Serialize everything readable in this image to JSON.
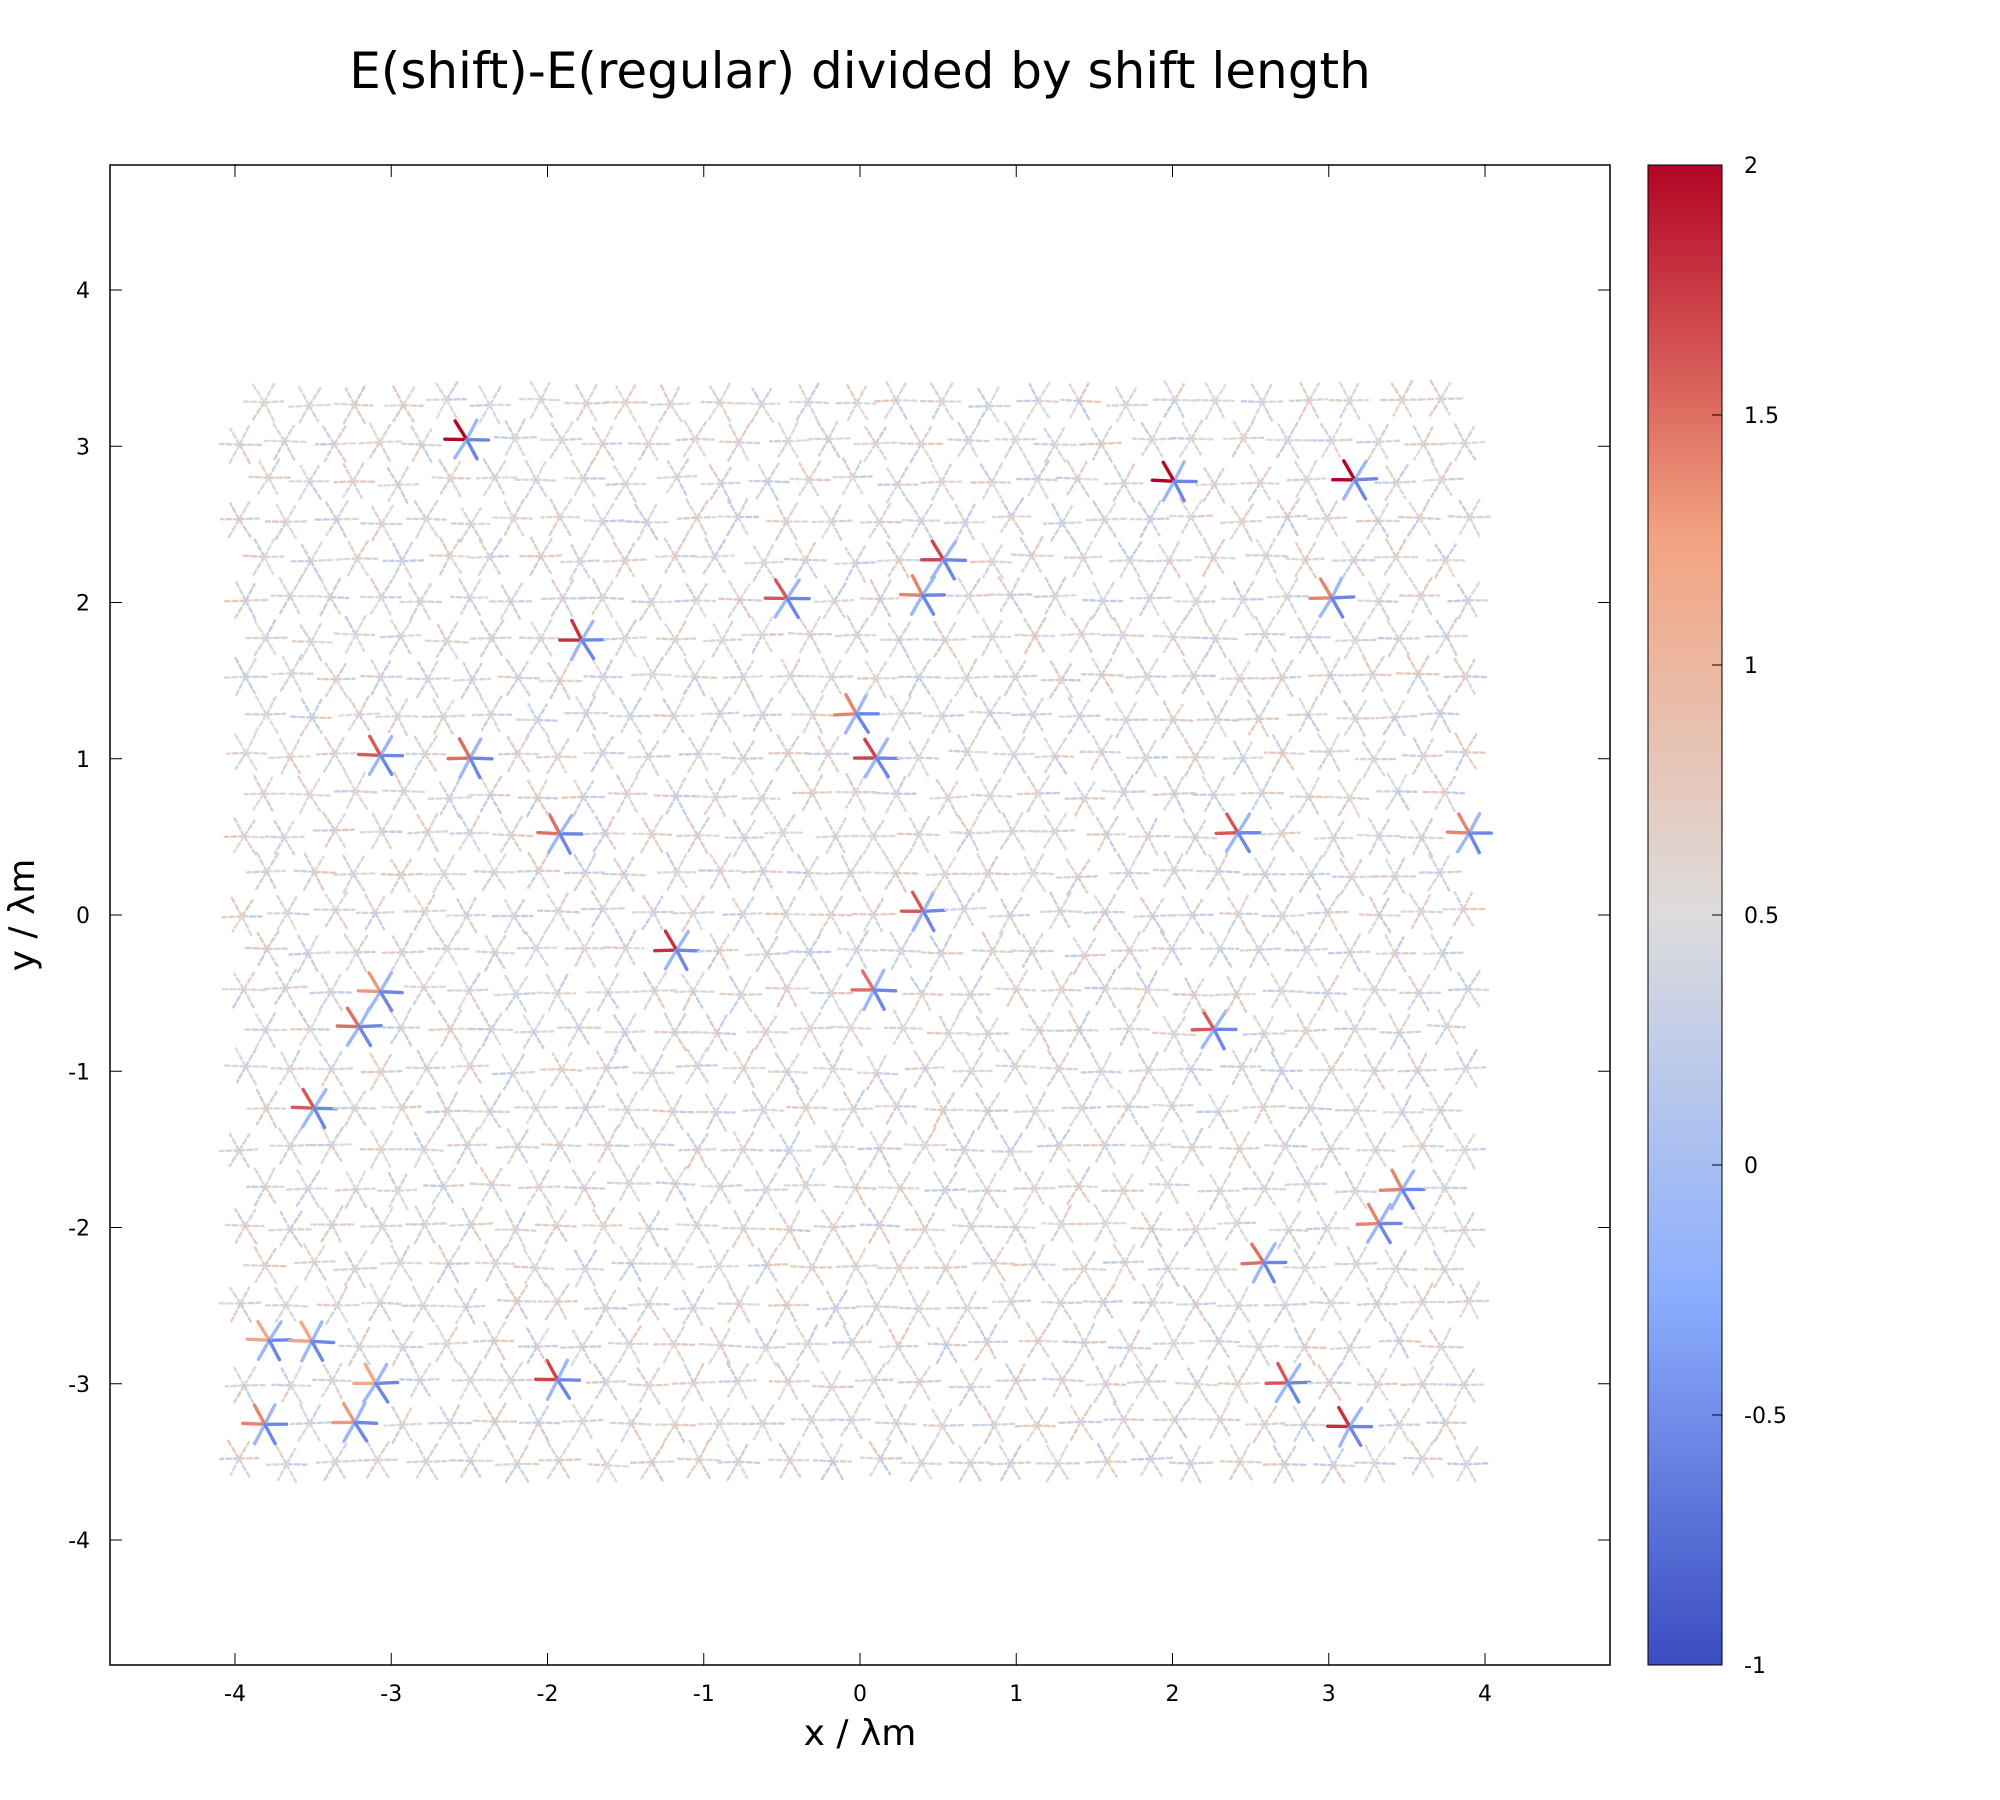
{
  "chart_data": {
    "type": "vector-field",
    "title": "E(shift)-E(regular) divided by shift length",
    "xlabel": "x / λm",
    "ylabel": "y / λm",
    "xlim": [
      -4.8,
      4.8
    ],
    "ylim": [
      -4.8,
      4.8
    ],
    "x_ticks": [
      "-4",
      "-3",
      "-2",
      "-1",
      "0",
      "1",
      "2",
      "3",
      "4"
    ],
    "y_ticks": [
      "-4",
      "-3",
      "-2",
      "-1",
      "0",
      "1",
      "2",
      "3",
      "4"
    ],
    "colorbar": {
      "range": [
        -1,
        2
      ],
      "ticks": [
        "-1",
        "-0.5",
        "0",
        "0.5",
        "1",
        "1.5",
        "2"
      ],
      "colors": [
        "#3b4cc0",
        "#8caffe",
        "#dddcdc",
        "#f3a481",
        "#b40426"
      ]
    },
    "lattice": {
      "spacing": 0.29,
      "x_range": [
        -3.95,
        3.95
      ],
      "y_range": [
        -3.5,
        3.45
      ],
      "baseline_value": 0.5
    },
    "defects": [
      {
        "x": -2.55,
        "y": 3.05,
        "value": 2.0
      },
      {
        "x": 2.05,
        "y": 2.85,
        "value": 2.0
      },
      {
        "x": 3.2,
        "y": 2.85,
        "value": 2.0
      },
      {
        "x": 0.45,
        "y": 2.35,
        "value": 1.7
      },
      {
        "x": -0.45,
        "y": 2.15,
        "value": 1.6
      },
      {
        "x": 0.5,
        "y": 2.0,
        "value": 1.4
      },
      {
        "x": 2.9,
        "y": 2.0,
        "value": 1.4
      },
      {
        "x": -1.65,
        "y": 1.85,
        "value": 1.8
      },
      {
        "x": -0.15,
        "y": 1.3,
        "value": 1.4
      },
      {
        "x": 0.15,
        "y": 1.15,
        "value": 1.7
      },
      {
        "x": -3.15,
        "y": 0.95,
        "value": 1.6
      },
      {
        "x": -2.6,
        "y": 0.95,
        "value": 1.5
      },
      {
        "x": -2.0,
        "y": 0.6,
        "value": 1.5
      },
      {
        "x": 2.55,
        "y": 0.45,
        "value": 1.6
      },
      {
        "x": 3.8,
        "y": 0.45,
        "value": 1.4
      },
      {
        "x": 0.45,
        "y": -0.1,
        "value": 1.6
      },
      {
        "x": -1.05,
        "y": -0.25,
        "value": 1.8
      },
      {
        "x": -3.2,
        "y": -0.45,
        "value": 1.3
      },
      {
        "x": 0.15,
        "y": -0.6,
        "value": 1.5
      },
      {
        "x": -3.2,
        "y": -0.75,
        "value": 1.5
      },
      {
        "x": 2.25,
        "y": -0.75,
        "value": 1.6
      },
      {
        "x": -3.45,
        "y": -1.3,
        "value": 1.6
      },
      {
        "x": 3.45,
        "y": -1.8,
        "value": 1.4
      },
      {
        "x": 3.2,
        "y": -2.0,
        "value": 1.4
      },
      {
        "x": 2.55,
        "y": -2.35,
        "value": 1.5
      },
      {
        "x": -1.95,
        "y": -2.85,
        "value": 1.7
      },
      {
        "x": -3.5,
        "y": -2.7,
        "value": 1.2
      },
      {
        "x": -3.8,
        "y": -2.85,
        "value": 1.2
      },
      {
        "x": -3.1,
        "y": -3.0,
        "value": 1.2
      },
      {
        "x": 2.6,
        "y": -3.05,
        "value": 1.6
      },
      {
        "x": -3.75,
        "y": -3.2,
        "value": 1.4
      },
      {
        "x": -3.2,
        "y": -3.25,
        "value": 1.3
      },
      {
        "x": 3.2,
        "y": -3.4,
        "value": 1.8
      }
    ]
  }
}
